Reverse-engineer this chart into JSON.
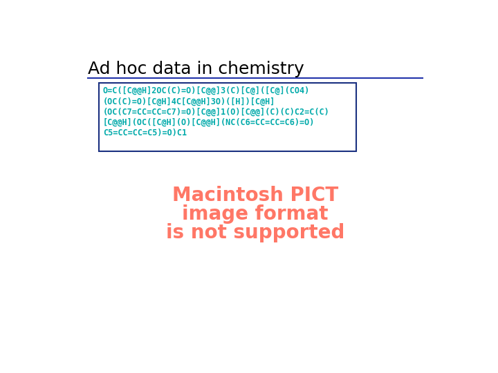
{
  "title": "Ad hoc data in chemistry",
  "title_fontsize": 18,
  "title_color": "#000000",
  "bg_color": "#ffffff",
  "separator_color": "#2233aa",
  "box_border_color": "#1a3080",
  "text_lines": [
    "O=C([C@@H]2OC(C)=O)[C@@]3(C)[C@]([C@](CO4)",
    "(OC(C)=O)[C@H]4C[C@@H]3O)([H])[C@H]",
    "(OC(C7=CC=CC=C7)=O)[C@@]1(O)[C@@](C)(C)C2=C(C)",
    "[C@@H](OC([C@H](O)[C@@H](NC(C6=CC=CC=C6)=O)",
    "C5=CC=CC=C5)=O)C1"
  ],
  "text_color_primary": "#00aaaa",
  "pict_lines": [
    "Macintosh PICT",
    "image format",
    "is not supported"
  ],
  "pict_color": "#ff7766",
  "pict_fontsize": 20
}
